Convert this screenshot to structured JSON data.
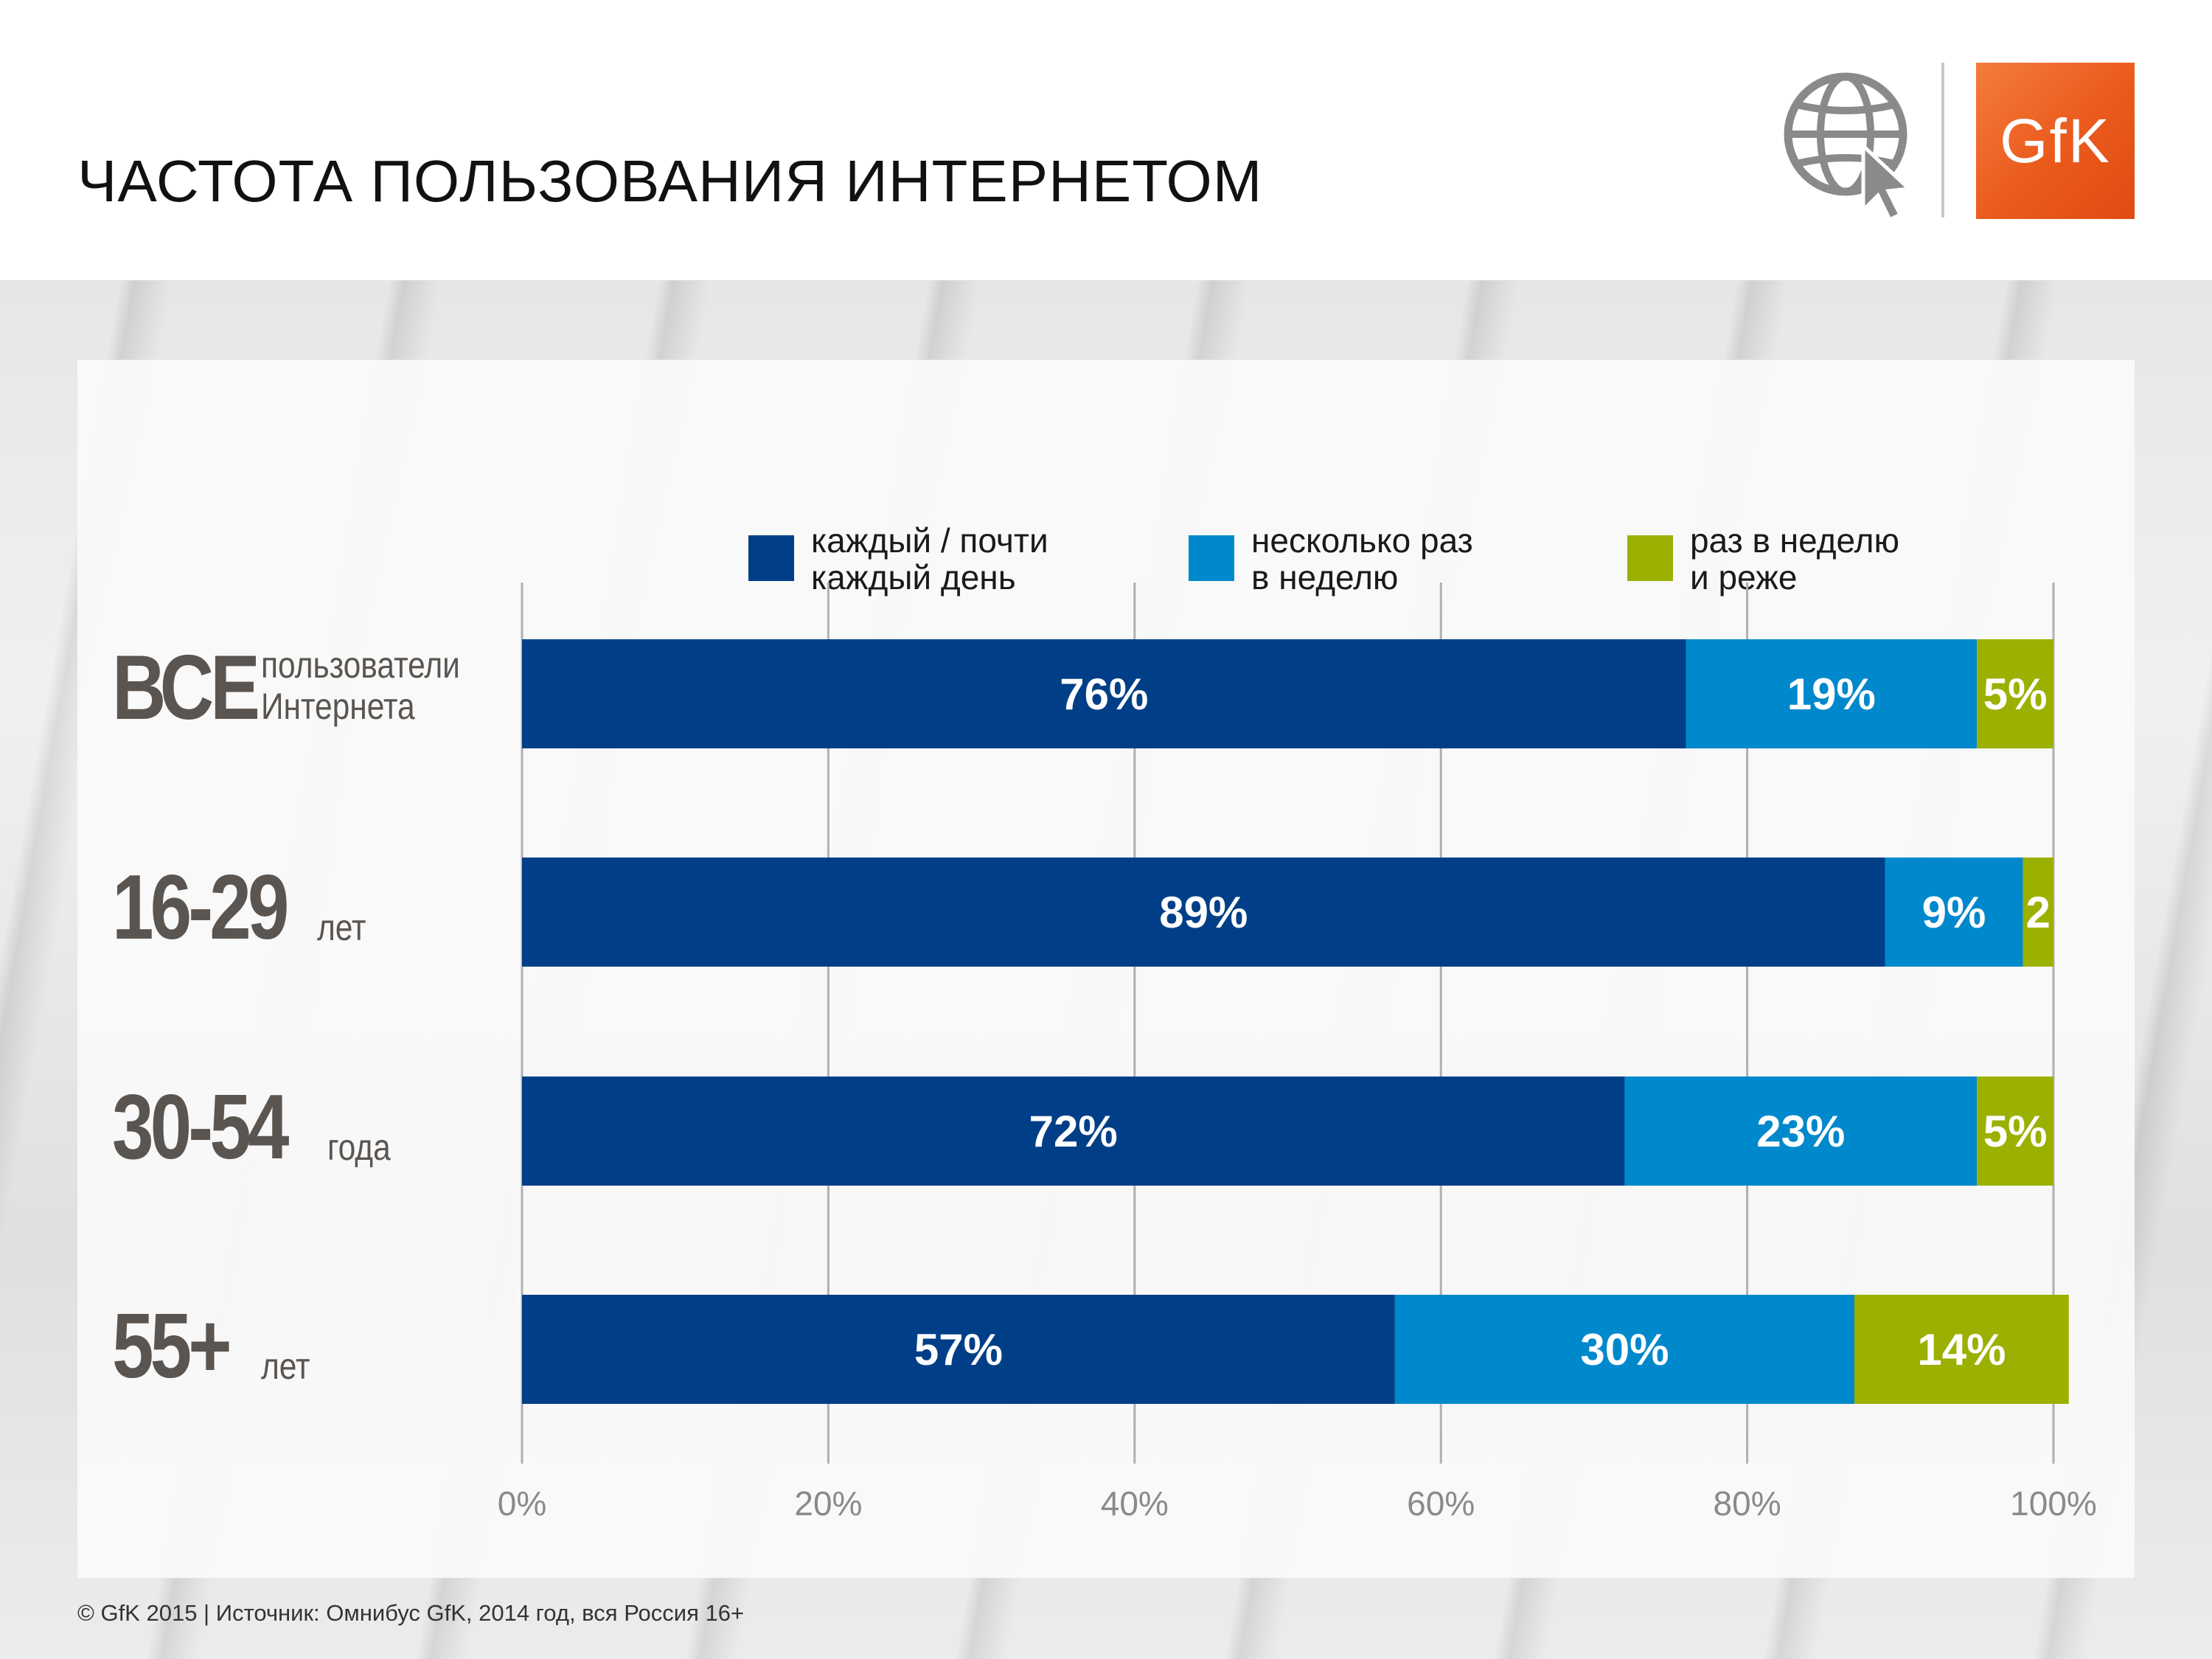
{
  "title": "ЧАСТОТА ПОЛЬЗОВАНИЯ ИНТЕРНЕТОМ",
  "logo": {
    "text": "GfK",
    "color": "#ea5a1c"
  },
  "footer": "© GfK 2015 | Источник: Омнибус GfK, 2014 год, вся Россия 16+",
  "legend": [
    {
      "label": "каждый / почти\nкаждый день",
      "color": "#003f87"
    },
    {
      "label": "несколько раз\nв неделю",
      "color": "#0088cc"
    },
    {
      "label": "раз в неделю\nи реже",
      "color": "#9bb000"
    }
  ],
  "categories": [
    {
      "big": "ВСЕ",
      "small": "пользователи\nИнтернета"
    },
    {
      "big": "16-29",
      "small": "лет"
    },
    {
      "big": "30-54",
      "small": "года"
    },
    {
      "big": "55+",
      "small": "лет"
    }
  ],
  "chart_data": {
    "type": "bar",
    "orientation": "horizontal",
    "stacked": true,
    "categories": [
      "ВСЕ пользователи Интернета",
      "16-29 лет",
      "30-54 года",
      "55+ лет"
    ],
    "series": [
      {
        "name": "каждый / почти каждый день",
        "values": [
          76,
          89,
          72,
          57
        ],
        "labels": [
          "76%",
          "89%",
          "72%",
          "57%"
        ],
        "color": "#003f87"
      },
      {
        "name": "несколько раз в неделю",
        "values": [
          19,
          9,
          23,
          30
        ],
        "labels": [
          "19%",
          "9%",
          "23%",
          "30%"
        ],
        "color": "#0088cc"
      },
      {
        "name": "раз в неделю и реже",
        "values": [
          5,
          2,
          5,
          14
        ],
        "labels": [
          "5%",
          "2",
          "5%",
          "14%"
        ],
        "color": "#9bb000"
      }
    ],
    "xlim": [
      0,
      100
    ],
    "xticks": [
      "0%",
      "20%",
      "40%",
      "60%",
      "80%",
      "100%"
    ],
    "grid": true,
    "legend_position": "top"
  }
}
